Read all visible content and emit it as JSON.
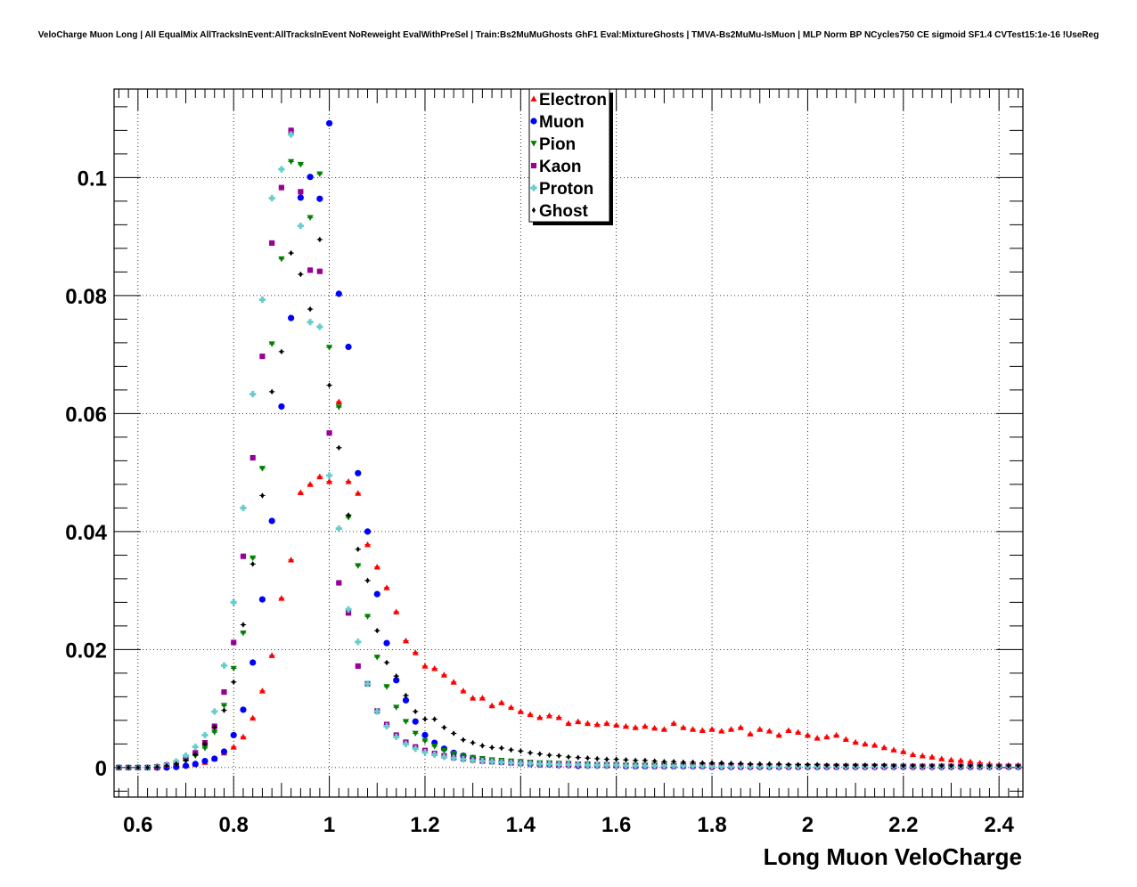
{
  "chart_data": {
    "type": "scatter",
    "title": "VeloCharge Muon Long | All EqualMix AllTracksInEvent:AllTracksInEvent NoReweight EvalWithPreSel | Train:Bs2MuMuGhosts GhF1 Eval:MixtureGhosts | TMVA-Bs2MuMu-IsMuon | MLP Norm BP NCycles750 CE sigmoid SF1.4 CVTest15:1e-16 !UseReg",
    "xlabel": "Long Muon VeloCharge",
    "ylabel": "",
    "xlim": [
      0.55,
      2.45
    ],
    "ylim": [
      -0.005,
      0.115
    ],
    "x_ticks": [
      0.6,
      0.8,
      1,
      1.2,
      1.4,
      1.6,
      1.8,
      2,
      2.2,
      2.4
    ],
    "x_tick_labels": [
      "0.6",
      "0.8",
      "1",
      "1.2",
      "1.4",
      "1.6",
      "1.8",
      "2",
      "2.2",
      "2.4"
    ],
    "y_ticks": [
      0,
      0.02,
      0.04,
      0.06,
      0.08,
      0.1
    ],
    "y_tick_labels": [
      "0",
      "0.02",
      "0.04",
      "0.06",
      "0.08",
      "0.1"
    ],
    "grid": true,
    "legend_position": "top-center",
    "bin_start": 0.55,
    "bin_width": 0.02,
    "series": [
      {
        "name": "Electron",
        "color": "#ff0000",
        "marker": "triangle-up",
        "values": [
          0,
          0,
          0,
          0,
          0,
          0.0001,
          0.0002,
          0.0004,
          0.0006,
          0.0009,
          0.0015,
          0.0025,
          0.0035,
          0.0052,
          0.0084,
          0.013,
          0.019,
          0.0287,
          0.0352,
          0.0466,
          0.048,
          0.0493,
          0.0485,
          0.062,
          0.0485,
          0.0465,
          0.0378,
          0.034,
          0.0305,
          0.0264,
          0.0215,
          0.0195,
          0.0172,
          0.0168,
          0.0157,
          0.0145,
          0.013,
          0.0118,
          0.0118,
          0.0105,
          0.011,
          0.0102,
          0.0095,
          0.009,
          0.0085,
          0.0088,
          0.0085,
          0.0075,
          0.0078,
          0.0075,
          0.0073,
          0.0075,
          0.0072,
          0.007,
          0.0068,
          0.007,
          0.0067,
          0.0065,
          0.0075,
          0.0068,
          0.0065,
          0.0063,
          0.0065,
          0.0062,
          0.0065,
          0.0068,
          0.0057,
          0.0065,
          0.0062,
          0.0055,
          0.0063,
          0.006,
          0.0055,
          0.005,
          0.0052,
          0.0055,
          0.0048,
          0.0043,
          0.004,
          0.0038,
          0.0034,
          0.003,
          0.0027,
          0.0022,
          0.002,
          0.0018,
          0.0015,
          0.0013,
          0.0012,
          0.001,
          0.0008,
          0.0006,
          0.0005,
          0.0004,
          0.0004
        ]
      },
      {
        "name": "Muon",
        "color": "#0000ff",
        "marker": "circle",
        "values": [
          0,
          0,
          0,
          0,
          0,
          0,
          0.0001,
          0.0003,
          0.0006,
          0.0011,
          0.0015,
          0.0027,
          0.0055,
          0.0098,
          0.0178,
          0.0285,
          0.0418,
          0.0612,
          0.0762,
          0.0966,
          0.1001,
          0.0964,
          0.1092,
          0.0803,
          0.0713,
          0.0499,
          0.04,
          0.0294,
          0.0211,
          0.0148,
          0.0114,
          0.0078,
          0.0055,
          0.0042,
          0.0032,
          0.0025,
          0.002,
          0.0016,
          0.0013,
          0.0011,
          0.0009,
          0.0008,
          0.0007,
          0.0006,
          0.0005,
          0.0005,
          0.0004,
          0.0004,
          0.0003,
          0.0003,
          0.0003,
          0.0003,
          0.0003,
          0.0002,
          0.0002,
          0.0002,
          0.0002,
          0.0002,
          0.0002,
          0.0002,
          0.0002,
          0.0002,
          0.0001,
          0.0001,
          0.0001,
          0.0001,
          0.0001,
          0.0001,
          0.0001,
          0.0001,
          0.0001,
          0.0001,
          0.0001,
          0.0001,
          0.0001,
          0.0001,
          0.0001,
          0.0001,
          0.0001,
          0.0001,
          0.0001,
          0.0001,
          0.0001,
          0.0001,
          0.0001,
          0.0001,
          0.0001,
          0.0001,
          0.0001,
          0.0001,
          0.0001,
          0.0001,
          0.0001,
          0.0001,
          0.0001
        ]
      },
      {
        "name": "Pion",
        "color": "#008000",
        "marker": "triangle-down",
        "values": [
          0,
          0,
          0,
          0,
          0.0001,
          0.0003,
          0.0006,
          0.0012,
          0.002,
          0.0033,
          0.006,
          0.0105,
          0.0168,
          0.0228,
          0.0355,
          0.0507,
          0.0718,
          0.0862,
          0.1027,
          0.1022,
          0.0932,
          0.1006,
          0.0712,
          0.0611,
          0.0424,
          0.0342,
          0.0256,
          0.0187,
          0.0137,
          0.0102,
          0.0078,
          0.0058,
          0.0045,
          0.0036,
          0.0029,
          0.0024,
          0.002,
          0.0017,
          0.0015,
          0.0013,
          0.0012,
          0.0011,
          0.001,
          0.0009,
          0.0008,
          0.0008,
          0.0007,
          0.0007,
          0.0006,
          0.0006,
          0.0005,
          0.0005,
          0.0005,
          0.0004,
          0.0004,
          0.0004,
          0.0004,
          0.0004,
          0.0003,
          0.0003,
          0.0003,
          0.0003,
          0.0003,
          0.0003,
          0.0003,
          0.0003,
          0.0003,
          0.0002,
          0.0002,
          0.0002,
          0.0002,
          0.0002,
          0.0002,
          0.0002,
          0.0002,
          0.0002,
          0.0002,
          0.0002,
          0.0002,
          0.0002,
          0.0002,
          0.0002,
          0.0002,
          0.0002,
          0.0002,
          0.0002,
          0.0002,
          0.0002,
          0.0002,
          0.0002,
          0.0002,
          0.0002,
          0.0002,
          0.0002,
          0.0002
        ]
      },
      {
        "name": "Kaon",
        "color": "#990099",
        "marker": "square",
        "values": [
          0,
          0,
          0,
          0,
          0.0001,
          0.0004,
          0.0008,
          0.0015,
          0.0025,
          0.0042,
          0.007,
          0.0128,
          0.0212,
          0.0358,
          0.0525,
          0.0697,
          0.0889,
          0.0983,
          0.108,
          0.0976,
          0.0843,
          0.0841,
          0.0567,
          0.0313,
          0.0262,
          0.0172,
          0.0142,
          0.0096,
          0.0073,
          0.0055,
          0.0043,
          0.0035,
          0.0029,
          0.0024,
          0.002,
          0.0017,
          0.0015,
          0.0013,
          0.0011,
          0.001,
          0.0009,
          0.0008,
          0.0007,
          0.0007,
          0.0006,
          0.0006,
          0.0005,
          0.0005,
          0.0005,
          0.0004,
          0.0004,
          0.0004,
          0.0004,
          0.0003,
          0.0003,
          0.0003,
          0.0003,
          0.0003,
          0.0003,
          0.0003,
          0.0003,
          0.0003,
          0.0002,
          0.0002,
          0.0002,
          0.0002,
          0.0002,
          0.0002,
          0.0002,
          0.0002,
          0.0002,
          0.0002,
          0.0002,
          0.0002,
          0.0002,
          0.0002,
          0.0002,
          0.0002,
          0.0002,
          0.0002,
          0.0002,
          0.0002,
          0.0002,
          0.0002,
          0.0002,
          0.0002,
          0.0002,
          0.0002,
          0.0002,
          0.0002,
          0.0002,
          0.0002,
          0.0002,
          0.0002,
          0.0002
        ]
      },
      {
        "name": "Proton",
        "color": "#66cccc",
        "marker": "cross",
        "values": [
          0,
          0,
          0,
          0,
          0.0002,
          0.0005,
          0.001,
          0.002,
          0.0035,
          0.0055,
          0.0095,
          0.0173,
          0.028,
          0.044,
          0.0633,
          0.0793,
          0.0965,
          0.1014,
          0.1073,
          0.0918,
          0.0755,
          0.0747,
          0.0495,
          0.0405,
          0.0268,
          0.0213,
          0.0142,
          0.0095,
          0.007,
          0.0052,
          0.004,
          0.0032,
          0.0026,
          0.0022,
          0.0018,
          0.0016,
          0.0014,
          0.0012,
          0.0011,
          0.001,
          0.0009,
          0.0008,
          0.0007,
          0.0007,
          0.0006,
          0.0006,
          0.0005,
          0.0005,
          0.0005,
          0.0004,
          0.0004,
          0.0004,
          0.0004,
          0.0003,
          0.0003,
          0.0003,
          0.0003,
          0.0003,
          0.0003,
          0.0003,
          0.0003,
          0.0003,
          0.0002,
          0.0002,
          0.0002,
          0.0002,
          0.0002,
          0.0002,
          0.0002,
          0.0002,
          0.0002,
          0.0002,
          0.0002,
          0.0002,
          0.0002,
          0.0002,
          0.0002,
          0.0002,
          0.0002,
          0.0002,
          0.0002,
          0.0002,
          0.0002,
          0.0002,
          0.0002,
          0.0002,
          0.0002,
          0.0002,
          0.0002,
          0.0002,
          0.0002,
          0.0002,
          0.0002,
          0.0002,
          0.0002
        ]
      },
      {
        "name": "Ghost",
        "color": "#000000",
        "marker": "diamond",
        "values": [
          0,
          0,
          0,
          0,
          0.0001,
          0.0003,
          0.0006,
          0.0012,
          0.0022,
          0.004,
          0.0068,
          0.0097,
          0.0145,
          0.0242,
          0.0345,
          0.0461,
          0.0637,
          0.0705,
          0.0872,
          0.0836,
          0.0777,
          0.0895,
          0.0648,
          0.0542,
          0.0428,
          0.037,
          0.0317,
          0.0232,
          0.0178,
          0.0155,
          0.0122,
          0.0095,
          0.0082,
          0.0082,
          0.0068,
          0.0058,
          0.0047,
          0.0042,
          0.0037,
          0.0034,
          0.0033,
          0.003,
          0.0028,
          0.0025,
          0.0023,
          0.0021,
          0.002,
          0.0018,
          0.0017,
          0.0016,
          0.0015,
          0.0014,
          0.0014,
          0.0013,
          0.0012,
          0.0012,
          0.0011,
          0.001,
          0.001,
          0.0009,
          0.0009,
          0.0008,
          0.0008,
          0.0008,
          0.0007,
          0.0007,
          0.0006,
          0.0006,
          0.0006,
          0.0006,
          0.0005,
          0.0005,
          0.0005,
          0.0005,
          0.0004,
          0.0004,
          0.0004,
          0.0004,
          0.0004,
          0.0004,
          0.0004,
          0.0003,
          0.0003,
          0.0003,
          0.0003,
          0.0003,
          0.0003,
          0.0003,
          0.0003,
          0.0003,
          0.0003,
          0.0003,
          0.0003,
          0.0003,
          0.0003
        ]
      }
    ]
  }
}
